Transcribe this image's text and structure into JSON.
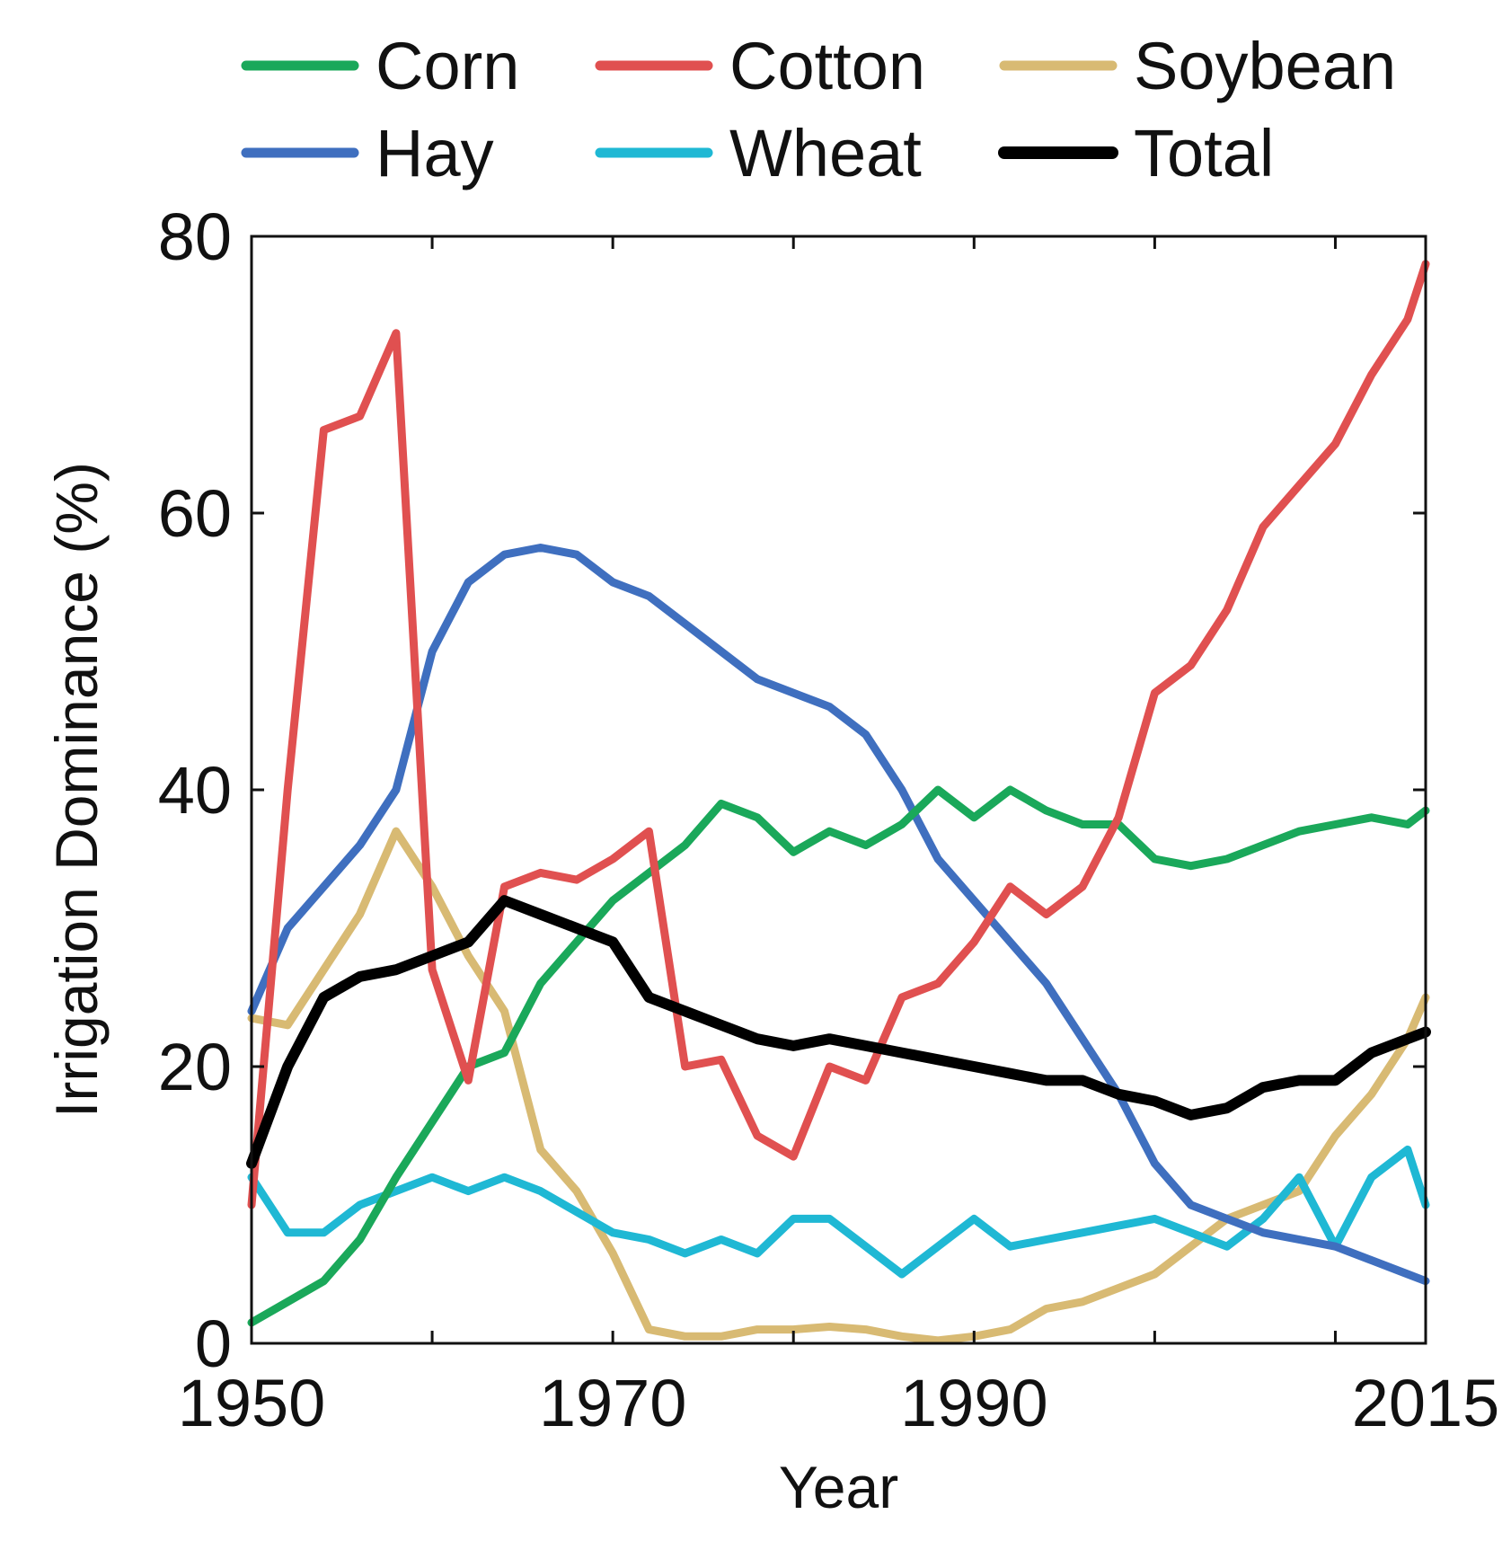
{
  "chart_data": {
    "type": "line",
    "title": "",
    "xlabel": "Year",
    "ylabel": "Irrigation Dominance (%)",
    "xlim": [
      1950,
      2015
    ],
    "ylim": [
      0,
      80
    ],
    "xticks": [
      1950,
      1970,
      1990,
      2015
    ],
    "yticks": [
      0,
      20,
      40,
      60,
      80
    ],
    "grid": false,
    "legend_position": "top",
    "x": [
      1950,
      1952,
      1954,
      1956,
      1958,
      1960,
      1962,
      1964,
      1966,
      1968,
      1970,
      1972,
      1974,
      1976,
      1978,
      1980,
      1982,
      1984,
      1986,
      1988,
      1990,
      1992,
      1994,
      1996,
      1998,
      2000,
      2002,
      2004,
      2006,
      2008,
      2010,
      2012,
      2014,
      2015
    ],
    "series": [
      {
        "name": "Corn",
        "color": "#1aa85a",
        "width": 9,
        "values": [
          1.5,
          3,
          4.5,
          7.5,
          12,
          16,
          20,
          21,
          26,
          29,
          32,
          34,
          36,
          39,
          38,
          35.5,
          37,
          36,
          37.5,
          40,
          38,
          40,
          38.5,
          37.5,
          37.5,
          35,
          34.5,
          35,
          36,
          37,
          37.5,
          38,
          37.5,
          38.5
        ]
      },
      {
        "name": "Cotton",
        "color": "#e05050",
        "width": 9,
        "values": [
          10,
          40,
          66,
          67,
          73,
          27,
          19,
          33,
          34,
          33.5,
          35,
          37,
          20,
          20.5,
          15,
          13.5,
          20,
          19,
          25,
          26,
          29,
          33,
          31,
          33,
          38,
          47,
          49,
          53,
          59,
          62,
          65,
          70,
          74,
          78
        ]
      },
      {
        "name": "Soybean",
        "color": "#d8ba73",
        "width": 9,
        "values": [
          23.5,
          23,
          27,
          31,
          37,
          33,
          28,
          24,
          14,
          11,
          6.5,
          1,
          0.5,
          0.5,
          1,
          1,
          1.2,
          1,
          0.5,
          0.2,
          0.5,
          1,
          2.5,
          3,
          4,
          5,
          7,
          9,
          10,
          11,
          15,
          18,
          22,
          25
        ]
      },
      {
        "name": "Hay",
        "color": "#3f6fbf",
        "width": 9,
        "values": [
          24,
          30,
          33,
          36,
          40,
          50,
          55,
          57,
          57.5,
          57,
          55,
          54,
          52,
          50,
          48,
          47,
          46,
          44,
          40,
          35,
          32,
          29,
          26,
          22,
          18,
          13,
          10,
          9,
          8,
          7.5,
          7,
          6,
          5,
          4.5
        ]
      },
      {
        "name": "Wheat",
        "color": "#1fb8d4",
        "width": 9,
        "values": [
          12,
          8,
          8,
          10,
          11,
          12,
          11,
          12,
          11,
          9.5,
          8,
          7.5,
          6.5,
          7.5,
          6.5,
          9,
          9,
          7,
          5,
          7,
          9,
          7,
          7.5,
          8,
          8.5,
          9,
          8,
          7,
          9,
          12,
          7,
          12,
          14,
          10
        ]
      },
      {
        "name": "Total",
        "color": "#000000",
        "width": 12,
        "values": [
          13,
          20,
          25,
          26.5,
          27,
          28,
          29,
          32,
          31,
          30,
          29,
          25,
          24,
          23,
          22,
          21.5,
          22,
          21.5,
          21,
          20.5,
          20,
          19.5,
          19,
          19,
          18,
          17.5,
          16.5,
          17,
          18.5,
          19,
          19,
          21,
          22,
          22.5
        ]
      }
    ]
  }
}
